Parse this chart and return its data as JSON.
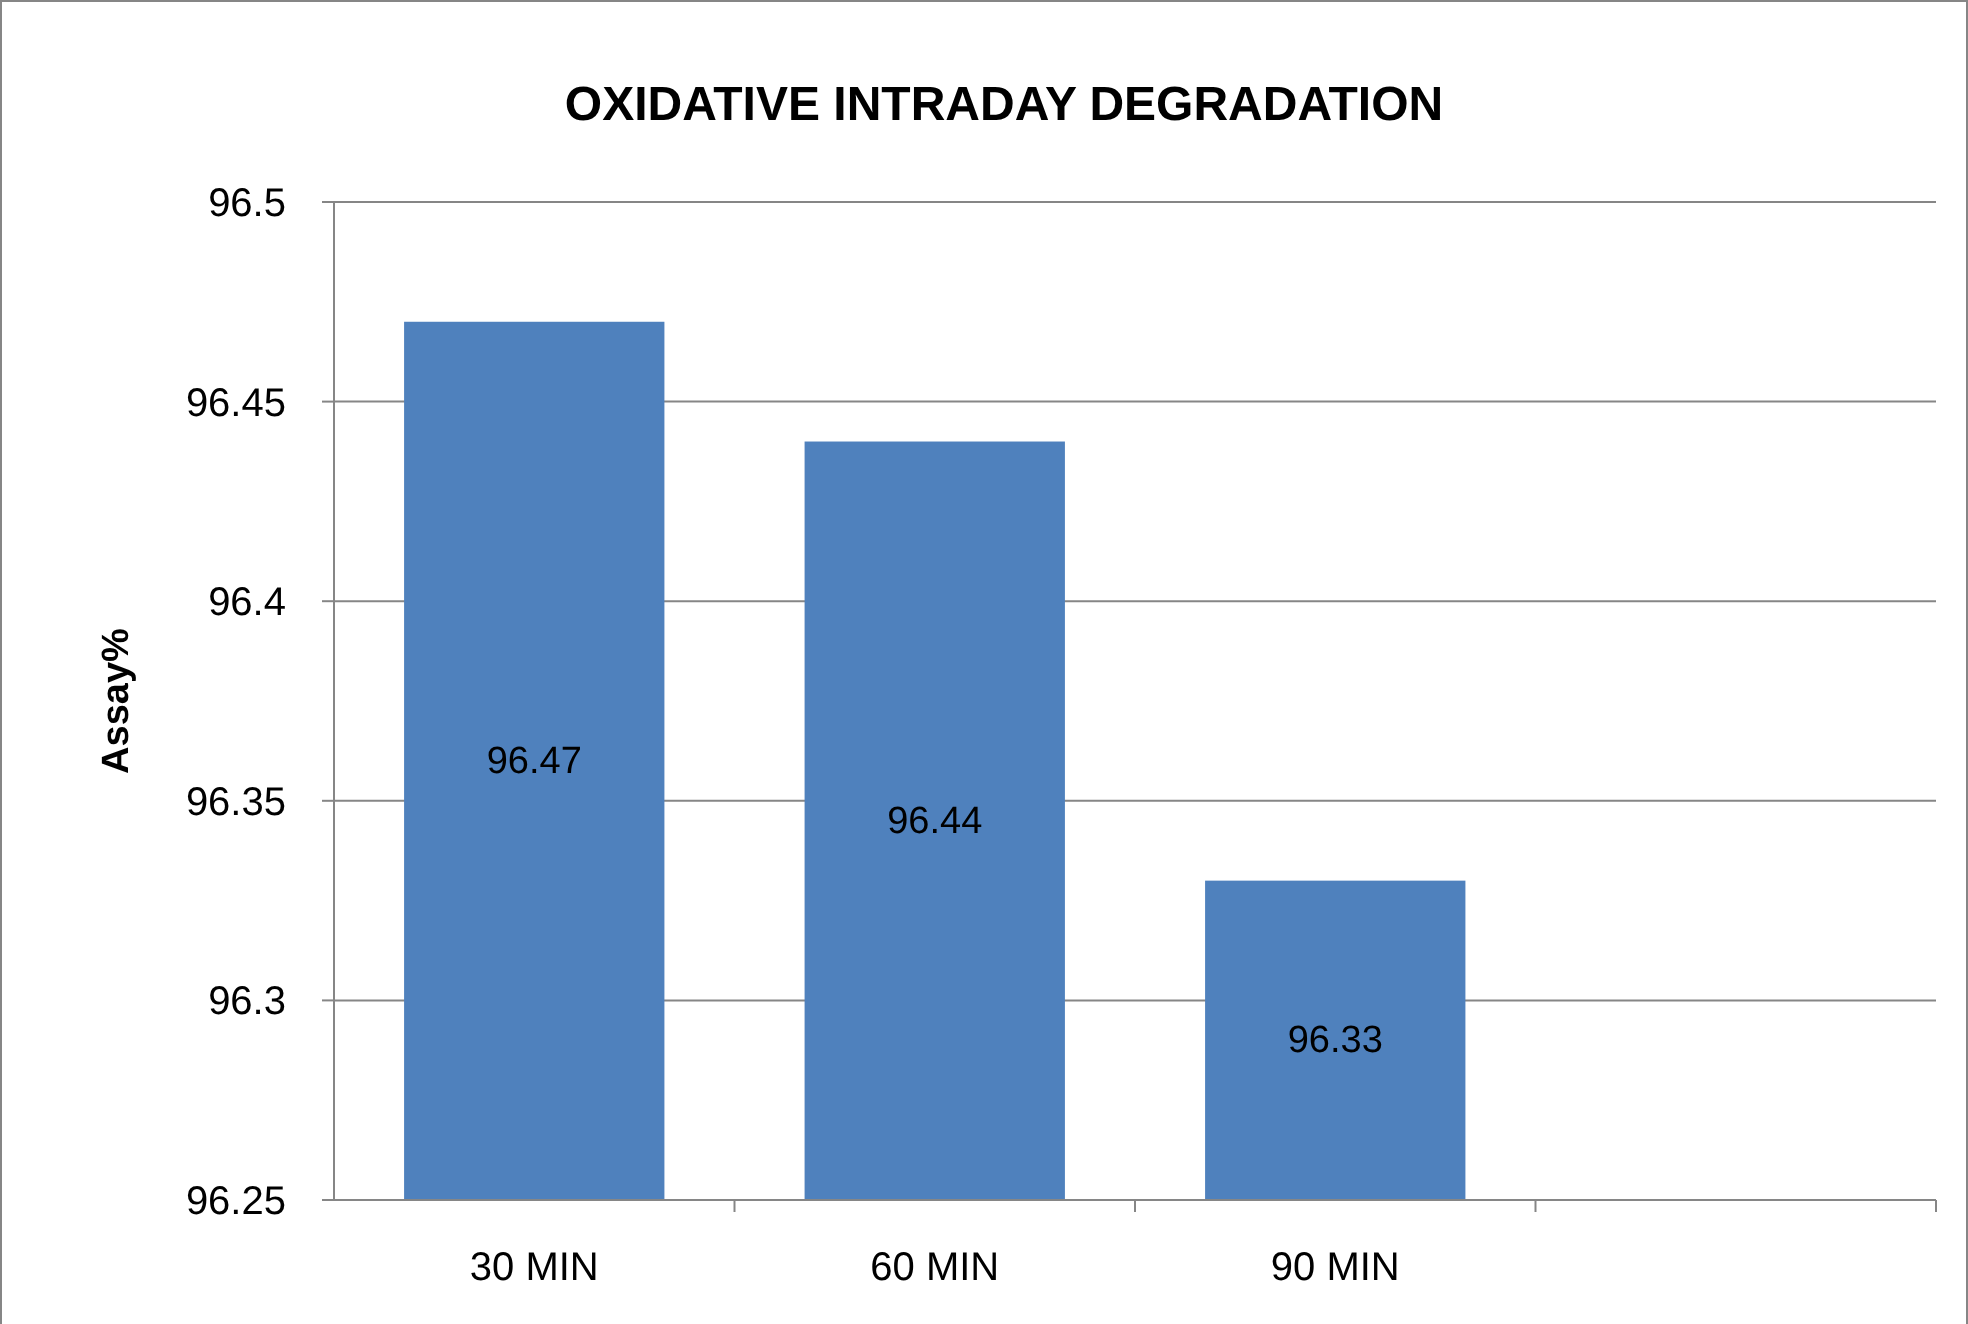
{
  "chart_data": {
    "type": "bar",
    "title": "OXIDATIVE INTRADAY DEGRADATION",
    "ylabel": "Assay%",
    "categories": [
      "30 MIN",
      "60 MIN",
      "90 MIN",
      null
    ],
    "values": [
      96.47,
      96.44,
      96.33,
      null
    ],
    "color": "#4f81bd",
    "ylim": [
      96.25,
      96.5
    ],
    "yticks": [
      96.25,
      96.3,
      96.35,
      96.4,
      96.45,
      96.5
    ],
    "grid": "y",
    "data_labels": true
  }
}
